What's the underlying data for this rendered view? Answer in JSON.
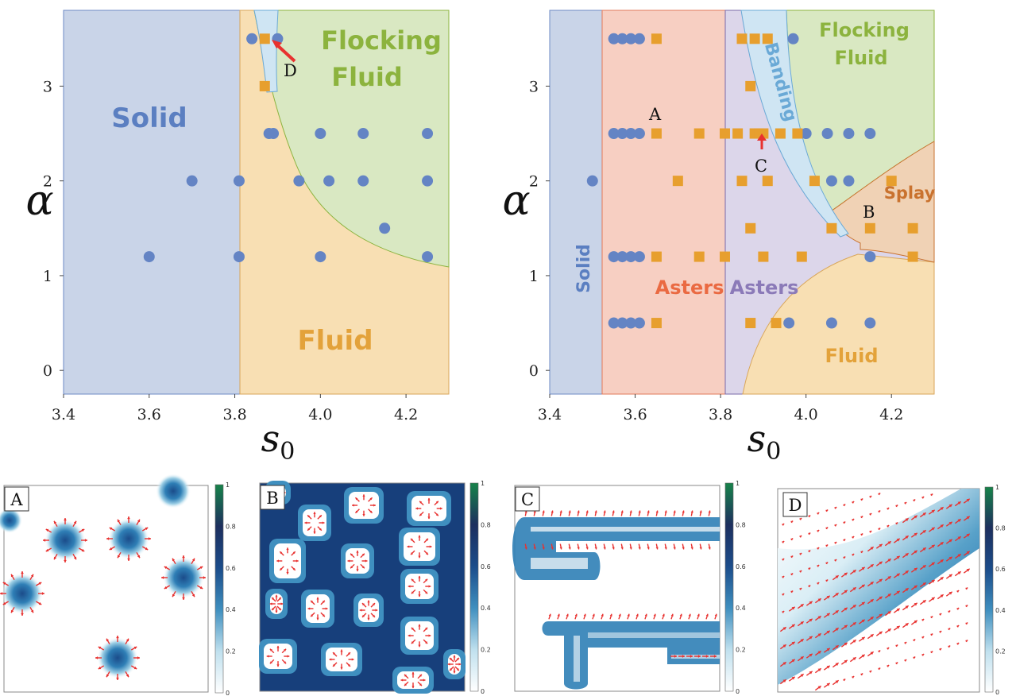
{
  "chart_data": [
    {
      "type": "scatter",
      "subtype": "phase-diagram",
      "xlabel": "s0",
      "ylabel": "α",
      "xlim": [
        3.4,
        4.3
      ],
      "ylim": [
        -0.25,
        3.8
      ],
      "xticks": [
        "3.4",
        "3.6",
        "3.8",
        "4.0",
        "4.2"
      ],
      "yticks": [
        "0",
        "1",
        "2",
        "3"
      ],
      "regions": [
        {
          "name": "Solid",
          "color": "#c9d4e8"
        },
        {
          "name": "Fluid",
          "color": "#f8dfb3"
        },
        {
          "name": "Flocking Fluid",
          "color": "#d9e8c2"
        },
        {
          "name": "Banding",
          "color": "#cfe5f3"
        }
      ],
      "labels": {
        "solid": "Solid",
        "fluid": "Fluid",
        "flocking1": "Flocking",
        "flocking2": "Fluid",
        "marker": "D"
      },
      "circles": [
        [
          3.6,
          1.2
        ],
        [
          3.7,
          2.0
        ],
        [
          3.81,
          2.0
        ],
        [
          3.81,
          1.2
        ],
        [
          3.84,
          3.5
        ],
        [
          3.9,
          3.5
        ],
        [
          3.88,
          2.5
        ],
        [
          3.89,
          2.5
        ],
        [
          4.0,
          2.5
        ],
        [
          4.1,
          2.5
        ],
        [
          4.25,
          2.5
        ],
        [
          3.95,
          2.0
        ],
        [
          4.02,
          2.0
        ],
        [
          4.1,
          2.0
        ],
        [
          4.25,
          2.0
        ],
        [
          4.15,
          1.5
        ],
        [
          4.0,
          1.2
        ],
        [
          4.25,
          1.2
        ]
      ],
      "squares": [
        [
          3.87,
          3.5
        ],
        [
          3.87,
          3.0
        ]
      ]
    },
    {
      "type": "scatter",
      "subtype": "phase-diagram",
      "xlabel": "s0",
      "ylabel": "α",
      "xlim": [
        3.4,
        4.3
      ],
      "ylim": [
        -0.25,
        3.8
      ],
      "xticks": [
        "3.4",
        "3.6",
        "3.8",
        "4.0",
        "4.2"
      ],
      "yticks": [
        "0",
        "1",
        "2",
        "3"
      ],
      "regions": [
        {
          "name": "Solid",
          "color": "#c9d4e8"
        },
        {
          "name": "Asters (red)",
          "color": "#f7cfc2"
        },
        {
          "name": "Asters (purple)",
          "color": "#dcd6ea"
        },
        {
          "name": "Banding",
          "color": "#cfe5f3"
        },
        {
          "name": "Flocking Fluid",
          "color": "#d9e8c2"
        },
        {
          "name": "Splay",
          "color": "#f0d2b5"
        },
        {
          "name": "Fluid",
          "color": "#f8dfb3"
        }
      ],
      "labels": {
        "solid": "Solid",
        "asters_red": "Asters",
        "asters_purple": "Asters",
        "banding": "Banding",
        "flocking1": "Flocking",
        "flocking2": "Fluid",
        "splay": "Splay",
        "fluid": "Fluid",
        "markerA": "A",
        "markerB": "B",
        "markerC": "C"
      },
      "circles": [
        [
          3.5,
          2.0
        ],
        [
          3.55,
          3.5
        ],
        [
          3.57,
          3.5
        ],
        [
          3.59,
          3.5
        ],
        [
          3.61,
          3.5
        ],
        [
          3.55,
          2.5
        ],
        [
          3.57,
          2.5
        ],
        [
          3.59,
          2.5
        ],
        [
          3.61,
          2.5
        ],
        [
          3.55,
          1.2
        ],
        [
          3.57,
          1.2
        ],
        [
          3.59,
          1.2
        ],
        [
          3.61,
          1.2
        ],
        [
          3.55,
          0.5
        ],
        [
          3.57,
          0.5
        ],
        [
          3.59,
          0.5
        ],
        [
          3.61,
          0.5
        ],
        [
          3.97,
          3.5
        ],
        [
          4.0,
          2.5
        ],
        [
          4.05,
          2.5
        ],
        [
          4.1,
          2.5
        ],
        [
          4.15,
          2.5
        ],
        [
          4.06,
          2.0
        ],
        [
          4.1,
          2.0
        ],
        [
          3.96,
          0.5
        ],
        [
          4.06,
          0.5
        ],
        [
          4.15,
          0.5
        ],
        [
          4.15,
          1.2
        ]
      ],
      "squares": [
        [
          3.65,
          3.5
        ],
        [
          3.85,
          3.5
        ],
        [
          3.88,
          3.5
        ],
        [
          3.91,
          3.5
        ],
        [
          3.87,
          3.0
        ],
        [
          3.65,
          2.5
        ],
        [
          3.75,
          2.5
        ],
        [
          3.81,
          2.5
        ],
        [
          3.84,
          2.5
        ],
        [
          3.88,
          2.5
        ],
        [
          3.89,
          2.5
        ],
        [
          3.9,
          2.5
        ],
        [
          3.94,
          2.5
        ],
        [
          3.98,
          2.5
        ],
        [
          3.7,
          2.0
        ],
        [
          3.85,
          2.0
        ],
        [
          3.91,
          2.0
        ],
        [
          4.02,
          2.0
        ],
        [
          4.2,
          2.0
        ],
        [
          3.87,
          1.5
        ],
        [
          4.06,
          1.5
        ],
        [
          4.15,
          1.5
        ],
        [
          4.25,
          1.5
        ],
        [
          3.65,
          1.2
        ],
        [
          3.75,
          1.2
        ],
        [
          3.81,
          1.2
        ],
        [
          3.9,
          1.2
        ],
        [
          3.99,
          1.2
        ],
        [
          4.25,
          1.2
        ],
        [
          3.65,
          0.5
        ],
        [
          3.87,
          0.5
        ],
        [
          3.93,
          0.5
        ]
      ]
    },
    {
      "type": "heatmap",
      "panel": "A",
      "colorbar_ticks": [
        "1",
        "0.8",
        "0.6",
        "0.4",
        "0.2",
        "0"
      ]
    },
    {
      "type": "heatmap",
      "panel": "B",
      "colorbar_ticks": [
        "1",
        "0.8",
        "0.6",
        "0.4",
        "0.2",
        "0"
      ]
    },
    {
      "type": "heatmap",
      "panel": "C",
      "colorbar_ticks": [
        "1",
        "0.8",
        "0.6",
        "0.4",
        "0.2",
        "0"
      ]
    },
    {
      "type": "heatmap",
      "panel": "D",
      "colorbar_ticks": [
        "1",
        "0.8",
        "0.6",
        "0.4",
        "0.2",
        "0"
      ]
    }
  ],
  "colors": {
    "circle": "#6484c4",
    "square": "#e79f2e",
    "arrow": "#e8312f",
    "solid": "#5b7fc1",
    "fluid": "#e3a23a",
    "flocking": "#8cb33e",
    "asters_red": "#ea6a42",
    "asters_purple": "#8b7ab8",
    "banding": "#6aa9d6",
    "splay": "#c9722e"
  }
}
